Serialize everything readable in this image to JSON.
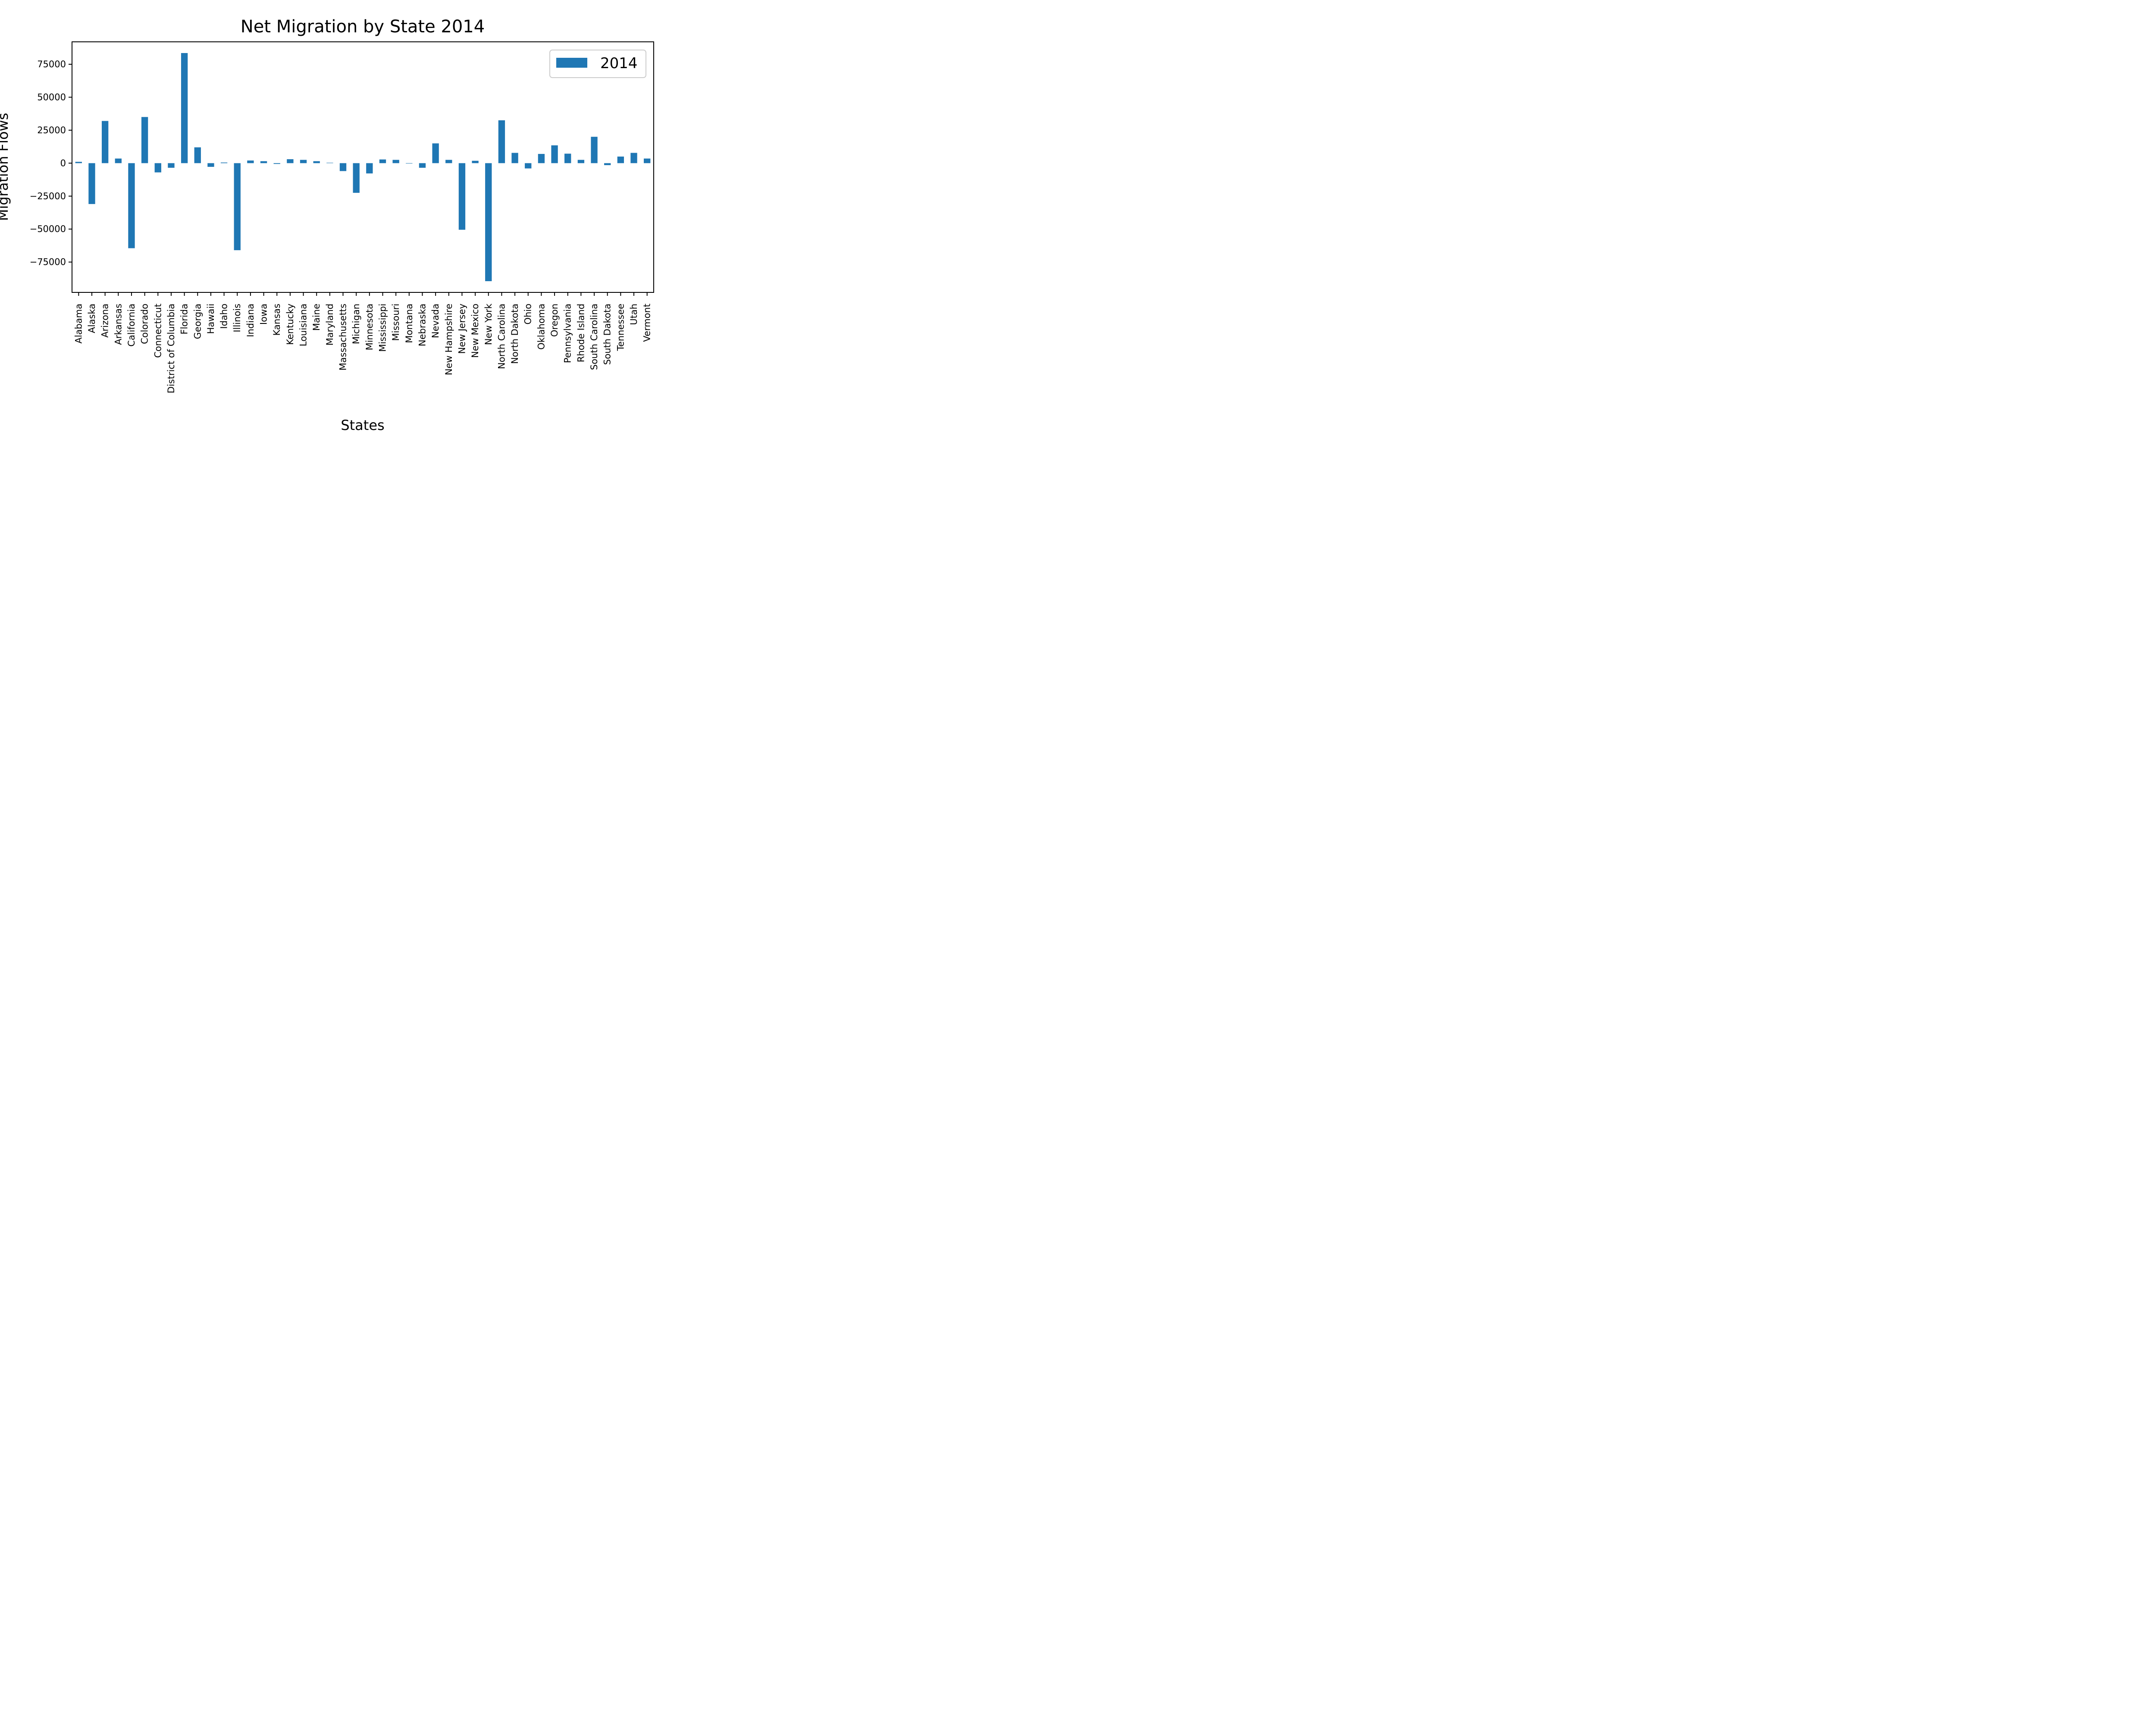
{
  "chart_data": {
    "type": "bar",
    "title": "Net Migration by State 2014",
    "xlabel": "States",
    "ylabel": "Migration Flows",
    "ylim": [
      -98000,
      92000
    ],
    "yticks": [
      75000,
      50000,
      25000,
      0,
      -25000,
      -50000,
      -75000
    ],
    "ytick_labels": [
      "75000",
      "50000",
      "25000",
      "0",
      "−25000",
      "−50000",
      "−75000"
    ],
    "legend": {
      "position": "top-right",
      "entries": [
        "2014"
      ]
    },
    "grid": false,
    "bar_color": "#1f77b4",
    "categories": [
      "Alabama",
      "Alaska",
      "Arizona",
      "Arkansas",
      "California",
      "Colorado",
      "Connecticut",
      "District of Columbia",
      "Florida",
      "Georgia",
      "Hawaii",
      "Idaho",
      "Illinois",
      "Indiana",
      "Iowa",
      "Kansas",
      "Kentucky",
      "Louisiana",
      "Maine",
      "Maryland",
      "Massachusetts",
      "Michigan",
      "Minnesota",
      "Mississippi",
      "Missouri",
      "Montana",
      "Nebraska",
      "Nevada",
      "New Hampshire",
      "New Jersey",
      "New Mexico",
      "New York",
      "North Carolina",
      "North Dakota",
      "Ohio",
      "Oklahoma",
      "Oregon",
      "Pennsylvania",
      "Rhode Island",
      "South Carolina",
      "South Dakota",
      "Tennessee",
      "Utah",
      "Vermont"
    ],
    "series": [
      {
        "name": "2014",
        "values": [
          1000,
          -31000,
          32000,
          3500,
          -64500,
          35000,
          -7000,
          -3500,
          83500,
          12000,
          -2800,
          500,
          -66000,
          2000,
          1500,
          -600,
          3000,
          2500,
          1500,
          300,
          -6000,
          -22500,
          -7800,
          2800,
          2500,
          -300,
          -3500,
          15000,
          2500,
          -50500,
          1800,
          -89500,
          32500,
          7800,
          -4000,
          7000,
          13500,
          7200,
          2500,
          20000,
          -1500,
          5000,
          7800,
          3500
        ]
      }
    ]
  }
}
